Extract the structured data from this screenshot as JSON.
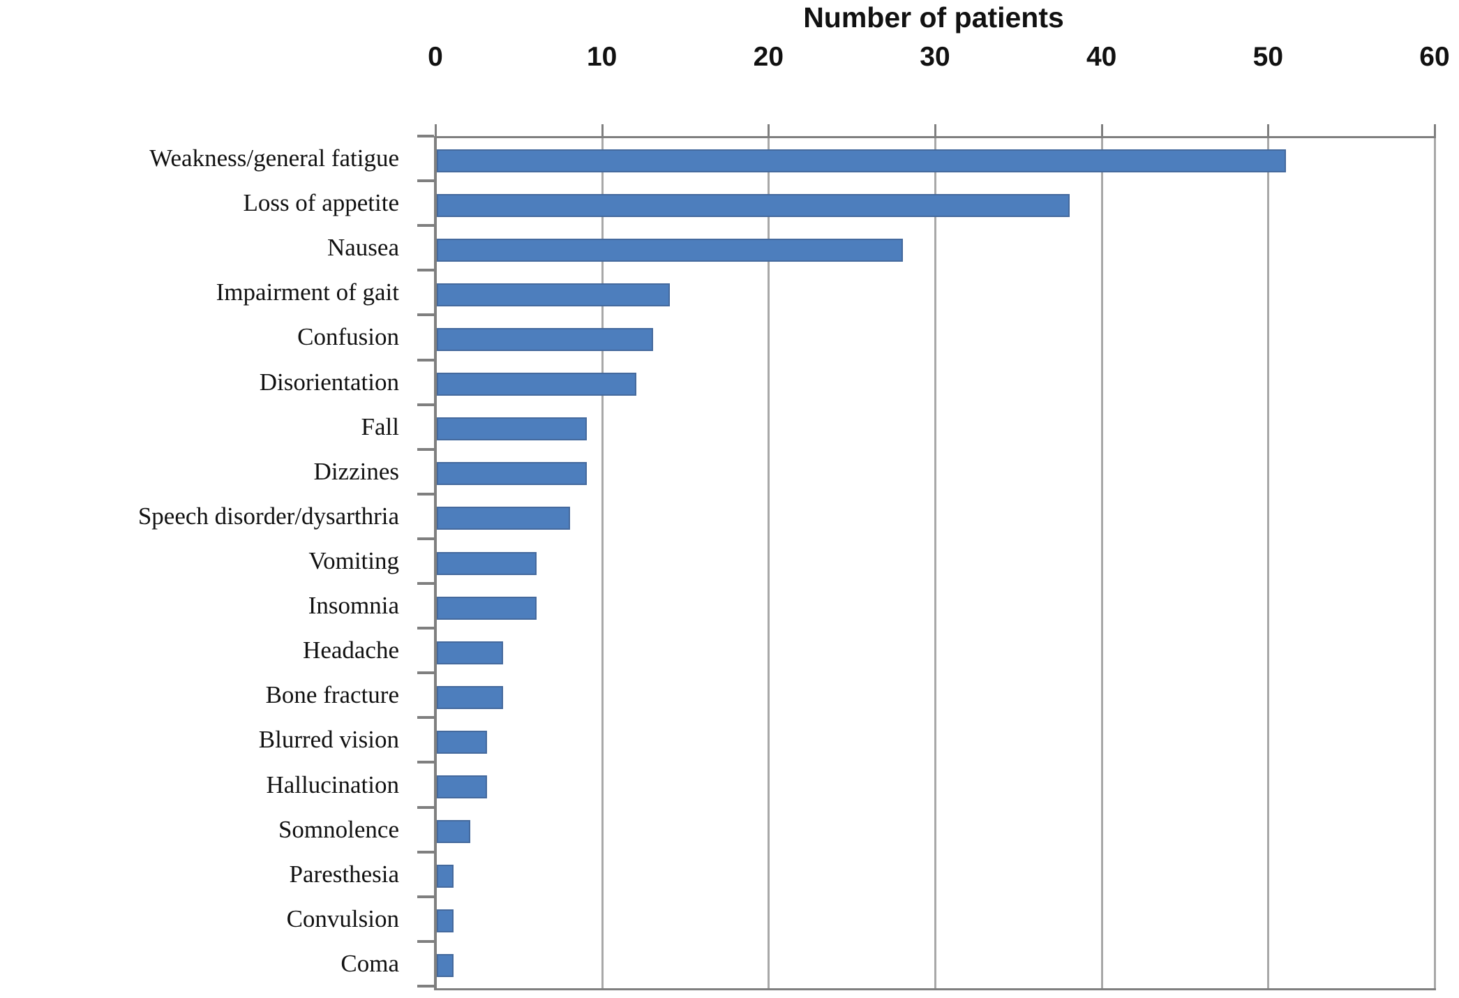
{
  "chart_data": {
    "type": "bar",
    "orientation": "horizontal",
    "title": "Number of patients",
    "categories": [
      "Weakness/general fatigue",
      "Loss of appetite",
      "Nausea",
      "Impairment of gait",
      "Confusion",
      "Disorientation",
      "Fall",
      "Dizzines",
      "Speech disorder/dysarthria",
      "Vomiting",
      "Insomnia",
      "Headache",
      "Bone fracture",
      "Blurred vision",
      "Hallucination",
      "Somnolence",
      "Paresthesia",
      "Convulsion",
      "Coma"
    ],
    "values": [
      51,
      38,
      28,
      14,
      13,
      12,
      9,
      9,
      8,
      6,
      6,
      4,
      4,
      3,
      3,
      2,
      1,
      1,
      1
    ],
    "xlabel": "Number of patients",
    "ylabel": "",
    "xlim": [
      0,
      60
    ],
    "xticks": [
      0,
      10,
      20,
      30,
      40,
      50,
      60
    ],
    "value_axis_position": "top",
    "grid": true,
    "legend": false,
    "colors": {
      "bar_fill": "#4d7ebd",
      "bar_border": "#44699d",
      "gridline": "#a8a8a8",
      "axis_line": "#7f7f7f",
      "text": "#111111",
      "background": "#ffffff"
    }
  }
}
